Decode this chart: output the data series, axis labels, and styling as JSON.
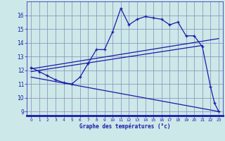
{
  "temp_x": [
    0,
    1,
    2,
    3,
    4,
    5,
    6,
    7,
    8,
    9,
    10,
    11,
    12,
    13,
    14,
    15,
    16,
    17,
    18,
    19,
    20,
    21,
    22,
    22.5,
    23
  ],
  "temp_y": [
    12.2,
    11.9,
    11.6,
    11.3,
    11.1,
    11.0,
    11.5,
    12.5,
    13.5,
    13.5,
    14.8,
    16.5,
    15.3,
    15.7,
    15.9,
    15.8,
    15.7,
    15.3,
    15.5,
    14.5,
    14.5,
    13.7,
    10.8,
    9.6,
    9.0
  ],
  "line1_x": [
    0,
    23
  ],
  "line1_y": [
    12.1,
    14.3
  ],
  "line2_x": [
    0,
    23
  ],
  "line2_y": [
    11.5,
    9.0
  ],
  "line3_x": [
    0,
    21
  ],
  "line3_y": [
    11.9,
    13.8
  ],
  "xlim": [
    -0.5,
    23.5
  ],
  "ylim": [
    8.7,
    17.0
  ],
  "yticks": [
    9,
    10,
    11,
    12,
    13,
    14,
    15,
    16
  ],
  "xticks": [
    0,
    1,
    2,
    3,
    4,
    5,
    6,
    7,
    8,
    9,
    10,
    11,
    12,
    13,
    14,
    15,
    16,
    17,
    18,
    19,
    20,
    21,
    22,
    23
  ],
  "xlabel": "Graphe des températures (°c)",
  "bg_color": "#cce8e8",
  "line_color": "#1a1aaa",
  "grid_color": "#8888bb"
}
